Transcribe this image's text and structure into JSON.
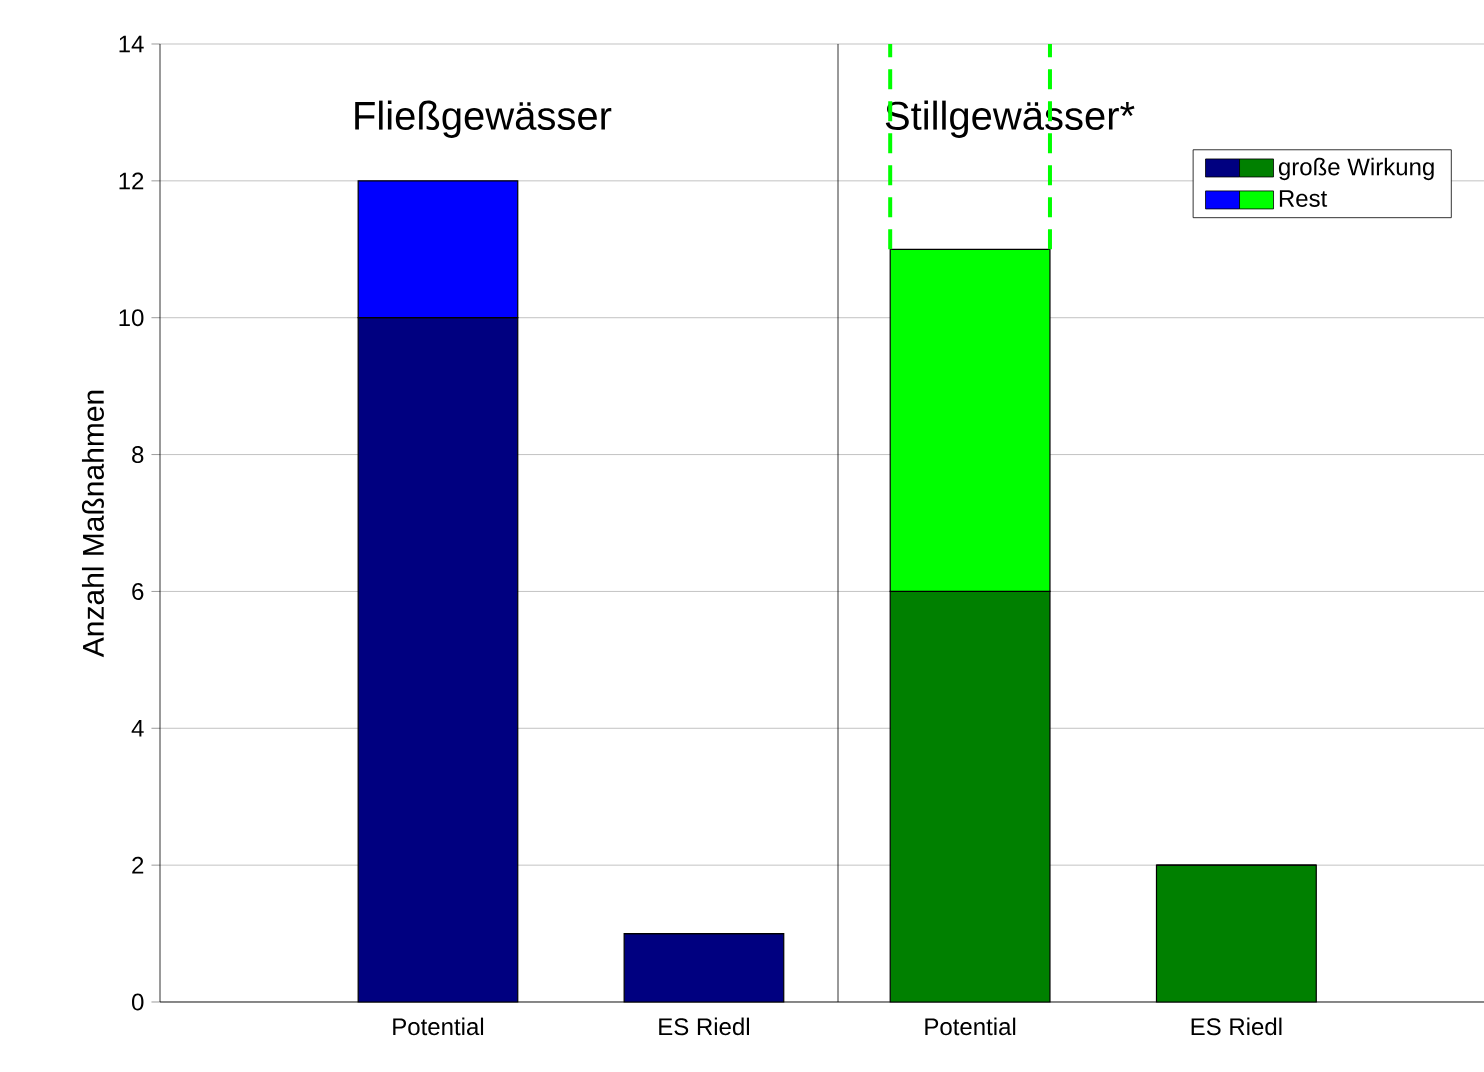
{
  "chart_data": [
    {
      "type": "bar",
      "stacked": true,
      "title": "Fließgewässer",
      "ylabel": "Anzahl Maßnahmen",
      "categories": [
        "Potential",
        "ES Riedl"
      ],
      "series": [
        {
          "colors": [
            "#000080",
            "#000080"
          ],
          "values": [
            10,
            1
          ]
        },
        {
          "colors": [
            "#0000ff",
            "#0000ff"
          ],
          "values": [
            2,
            0
          ]
        }
      ],
      "ylim": [
        0,
        14
      ],
      "yticks": [
        0,
        2,
        4,
        6,
        8,
        10,
        12,
        14
      ],
      "grid": "y"
    },
    {
      "type": "bar",
      "stacked": true,
      "title": "Stillgewässer*",
      "categories": [
        "Potential",
        "ES Riedl"
      ],
      "series": [
        {
          "name": "große Wirkung",
          "colors": [
            "#008000",
            "#008000"
          ],
          "values": [
            6,
            2
          ]
        },
        {
          "name": "Rest",
          "colors": [
            "#00ff00",
            "#00ff00"
          ],
          "values": [
            5,
            0
          ]
        }
      ],
      "ylim": [
        0,
        14
      ],
      "tick_labels": "x",
      "grid": "y",
      "legend": "top right"
    }
  ]
}
